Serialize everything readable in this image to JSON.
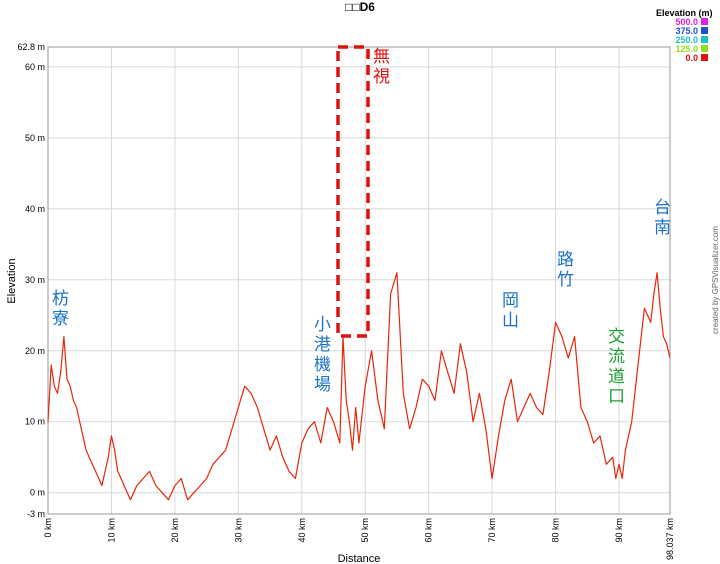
{
  "chart_data": {
    "type": "line",
    "title": "□□D6",
    "xlabel": "Distance",
    "ylabel": "Elevation",
    "xlim": [
      0,
      98.037
    ],
    "ylim": [
      -3,
      62.8
    ],
    "grid": true,
    "x_ticks": [
      {
        "value": 0,
        "label": "0 km"
      },
      {
        "value": 10,
        "label": "10 km"
      },
      {
        "value": 20,
        "label": "20 km"
      },
      {
        "value": 30,
        "label": "30 km"
      },
      {
        "value": 40,
        "label": "40 km"
      },
      {
        "value": 50,
        "label": "50 km"
      },
      {
        "value": 60,
        "label": "60 km"
      },
      {
        "value": 70,
        "label": "70 km"
      },
      {
        "value": 80,
        "label": "80 km"
      },
      {
        "value": 90,
        "label": "90 km"
      },
      {
        "value": 98.037,
        "label": "98.037 km"
      }
    ],
    "y_ticks": [
      {
        "value": -3,
        "label": "-3 m"
      },
      {
        "value": 0,
        "label": "0 m"
      },
      {
        "value": 10,
        "label": "10 m"
      },
      {
        "value": 20,
        "label": "20 m"
      },
      {
        "value": 30,
        "label": "30 m"
      },
      {
        "value": 40,
        "label": "40 m"
      },
      {
        "value": 50,
        "label": "50 m"
      },
      {
        "value": 60,
        "label": "60 m"
      },
      {
        "value": 62.8,
        "label": "62.8 m"
      }
    ],
    "series": [
      {
        "color": "#e8260a",
        "x": [
          0,
          0.5,
          1,
          1.5,
          2,
          2.5,
          3,
          3.5,
          4,
          4.5,
          5,
          5.5,
          6,
          6.5,
          7,
          7.5,
          8,
          8.5,
          9,
          9.5,
          10,
          10.5,
          11,
          11.5,
          12,
          12.5,
          13,
          14,
          15,
          16,
          17,
          18,
          19,
          20,
          21,
          22,
          23,
          24,
          25,
          26,
          27,
          28,
          29,
          30,
          31,
          32,
          33,
          34,
          35,
          36,
          37,
          38,
          39,
          40,
          41,
          42,
          43,
          44,
          45,
          46,
          46.5,
          47,
          47.5,
          48,
          48.5,
          49,
          50,
          51,
          52,
          53,
          54,
          55,
          56,
          57,
          58,
          59,
          60,
          61,
          62,
          63,
          64,
          65,
          66,
          67,
          68,
          69,
          70,
          71,
          72,
          73,
          74,
          75,
          76,
          77,
          78,
          79,
          80,
          81,
          82,
          83,
          84,
          85,
          86,
          87,
          88,
          89,
          89.5,
          90,
          90.5,
          91,
          92,
          93,
          94,
          95,
          95.5,
          96,
          96.5,
          97,
          97.5,
          98.037
        ],
        "y": [
          10,
          18,
          15,
          14,
          17,
          22,
          16,
          15,
          13,
          12,
          10,
          8,
          6,
          5,
          4,
          3,
          2,
          1,
          3,
          5,
          8,
          6,
          3,
          2,
          1,
          0,
          -1,
          1,
          2,
          3,
          1,
          0,
          -1,
          1,
          2,
          -1,
          0,
          1,
          2,
          4,
          5,
          6,
          9,
          12,
          15,
          14,
          12,
          9,
          6,
          8,
          5,
          3,
          2,
          7,
          9,
          10,
          7,
          12,
          10,
          7,
          22,
          13,
          10,
          6,
          12,
          7,
          15,
          20,
          13,
          9,
          28,
          31,
          14,
          9,
          12,
          16,
          15,
          13,
          20,
          17,
          14,
          21,
          17,
          10,
          14,
          9,
          2,
          8,
          13,
          16,
          10,
          12,
          14,
          12,
          11,
          17,
          24,
          22,
          19,
          22,
          12,
          10,
          7,
          8,
          4,
          5,
          2,
          4,
          2,
          6,
          10,
          18,
          26,
          24,
          28,
          31,
          26,
          22,
          21,
          19
        ]
      }
    ]
  },
  "legend": {
    "title": "Elevation (m)",
    "items": [
      {
        "label": "500.0",
        "color": "#e020e0"
      },
      {
        "label": "375.0",
        "color": "#2050d0"
      },
      {
        "label": "250.0",
        "color": "#20c0c0"
      },
      {
        "label": "125.0",
        "color": "#90e020"
      },
      {
        "label": "0.0",
        "color": "#e01010"
      }
    ]
  },
  "annotations": {
    "fangliao": [
      "枋",
      "寮"
    ],
    "xiaogang": [
      "小",
      "港",
      "機",
      "場"
    ],
    "wushi": [
      "無",
      "視"
    ],
    "gangshan": [
      "岡",
      "山"
    ],
    "luzhu": [
      "路",
      "竹"
    ],
    "interchange": [
      "交",
      "流",
      "道",
      "口"
    ],
    "tainan": [
      "台",
      "南"
    ],
    "colors": {
      "blue": "#1a73c8",
      "red": "#e01010",
      "green": "#1aa030"
    }
  },
  "credit": "created by GPSVisualizer.com"
}
